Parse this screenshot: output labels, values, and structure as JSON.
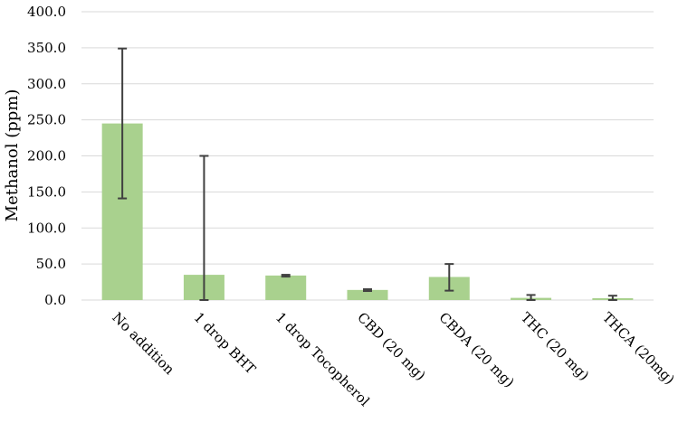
{
  "chart_data": {
    "type": "bar",
    "title": "",
    "xlabel": "",
    "ylabel": "Methanol (ppm)",
    "ylim": [
      0,
      400
    ],
    "yticks": [
      "0.0",
      "50.0",
      "100.0",
      "150.0",
      "200.0",
      "250.0",
      "300.0",
      "350.0",
      "400.0"
    ],
    "grid": true,
    "legend": "none",
    "categories": [
      "No addition",
      "1 drop BHT",
      "1 drop Tocopherol",
      "CBD (20 mg)",
      "CBDA (20 mg)",
      "THC (20 mg)",
      "THCA (20mg)"
    ],
    "values": [
      245,
      35,
      34,
      14,
      32,
      3,
      2.5
    ],
    "error_low": [
      141,
      0,
      32.5,
      12.5,
      13,
      0,
      0
    ],
    "error_high": [
      349,
      200,
      35,
      15,
      50,
      7,
      6
    ],
    "bar_color": "#a9d18e",
    "error_color": "#404040",
    "grid_color": "#d9d9d9"
  }
}
